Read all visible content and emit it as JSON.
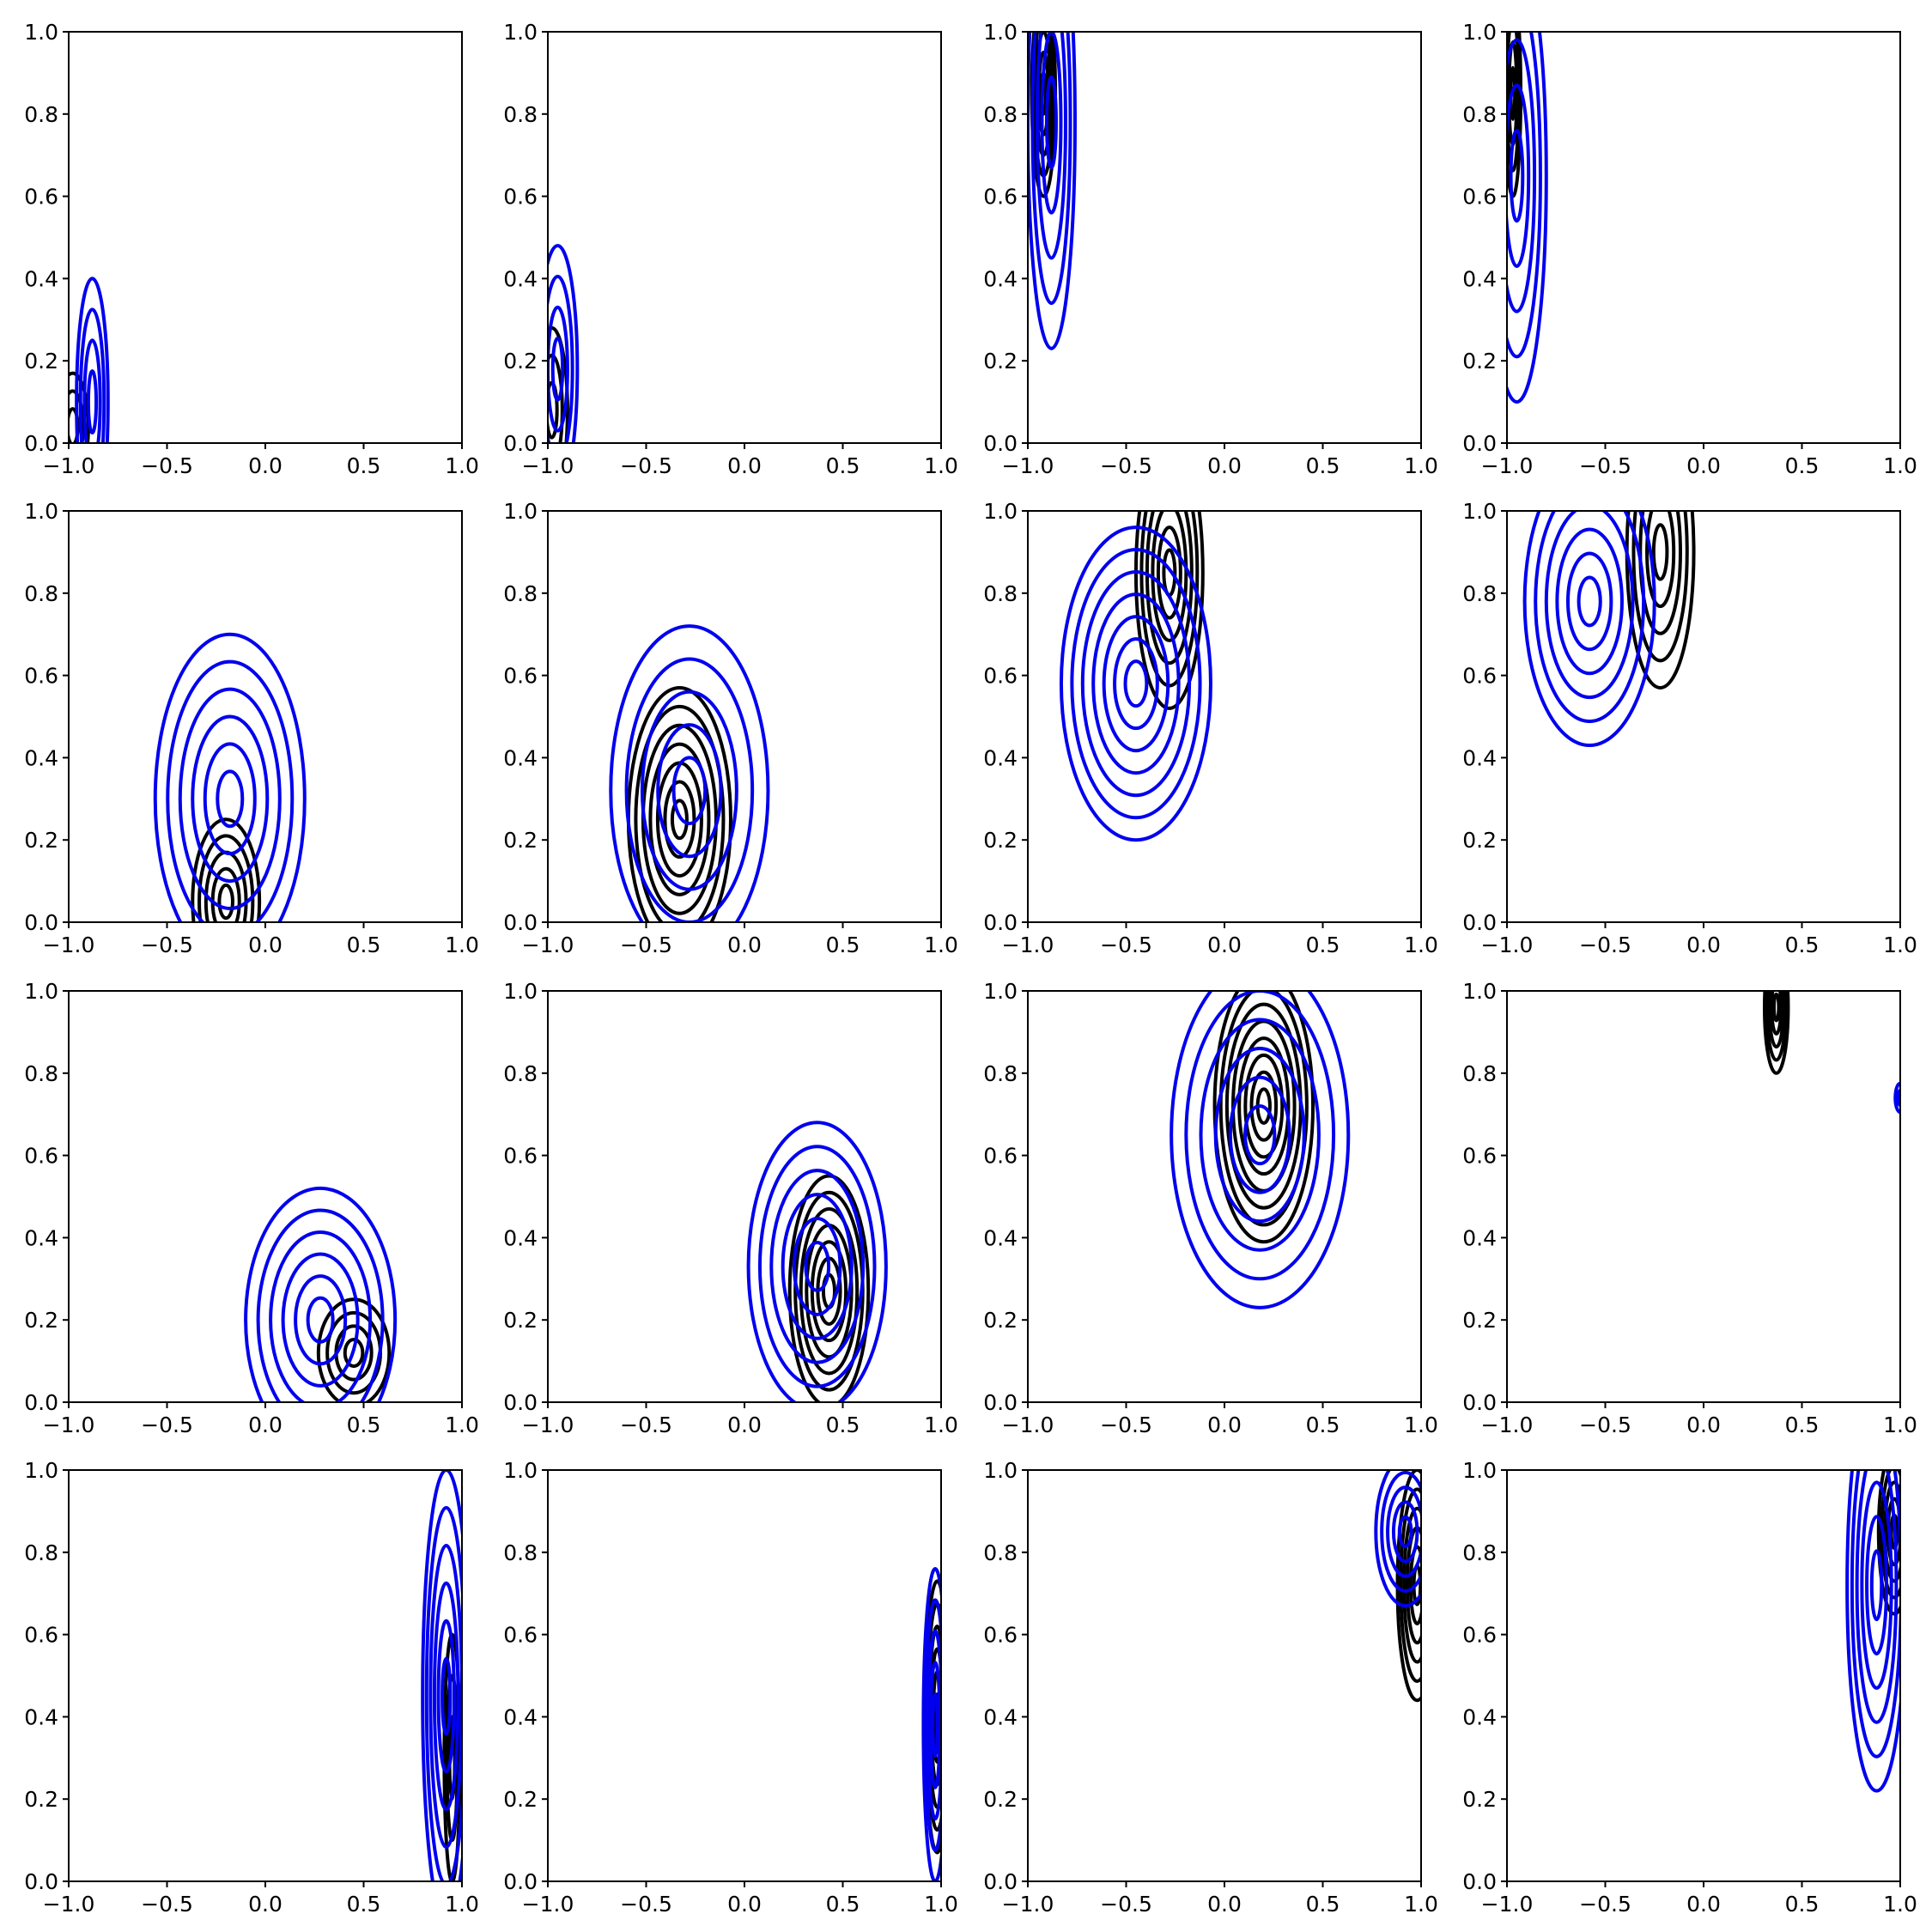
{
  "colors": {
    "black": "#000000",
    "blue": "#0000ee",
    "axes": "#000000",
    "background": "#ffffff"
  },
  "chart_data": {
    "type": "contour",
    "layout": {
      "rows": 4,
      "cols": 4
    },
    "xlim": [
      -1.0,
      1.0
    ],
    "ylim": [
      0.0,
      1.0
    ],
    "x_ticks": [
      "−1.0",
      "−0.5",
      "0.0",
      "0.5",
      "1.0"
    ],
    "y_ticks": [
      "0.0",
      "0.2",
      "0.4",
      "0.6",
      "0.8",
      "1.0"
    ],
    "grid": false,
    "series_colors": [
      "black",
      "blue"
    ],
    "panels": [
      {
        "black": {
          "cx": -0.98,
          "cy": 0.04,
          "sx": 0.08,
          "sy": 0.13,
          "levels": 3
        },
        "blue": {
          "cx": -0.88,
          "cy": 0.1,
          "sx": 0.08,
          "sy": 0.3,
          "levels": 4
        }
      },
      {
        "black": {
          "cx": -0.98,
          "cy": 0.08,
          "sx": 0.08,
          "sy": 0.2,
          "levels": 3
        },
        "blue": {
          "cx": -0.95,
          "cy": 0.18,
          "sx": 0.1,
          "sy": 0.3,
          "levels": 4
        }
      },
      {
        "black": {
          "cx": -0.92,
          "cy": 0.85,
          "sx": 0.06,
          "sy": 0.25,
          "levels": 5
        },
        "blue": {
          "cx": -0.88,
          "cy": 0.78,
          "sx": 0.12,
          "sy": 0.55,
          "levels": 5
        }
      },
      {
        "black": {
          "cx": -0.97,
          "cy": 0.85,
          "sx": 0.04,
          "sy": 0.25,
          "levels": 4
        },
        "blue": {
          "cx": -0.95,
          "cy": 0.65,
          "sx": 0.15,
          "sy": 0.55,
          "levels": 5
        }
      },
      {
        "black": {
          "cx": -0.2,
          "cy": 0.05,
          "sx": 0.17,
          "sy": 0.2,
          "levels": 5
        },
        "blue": {
          "cx": -0.18,
          "cy": 0.3,
          "sx": 0.38,
          "sy": 0.4,
          "levels": 6
        }
      },
      {
        "black": {
          "cx": -0.33,
          "cy": 0.25,
          "sx": 0.26,
          "sy": 0.32,
          "levels": 7
        },
        "blue": {
          "cx": -0.28,
          "cy": 0.32,
          "sx": 0.4,
          "sy": 0.4,
          "levels": 5
        }
      },
      {
        "black": {
          "cx": -0.28,
          "cy": 0.85,
          "sx": 0.17,
          "sy": 0.33,
          "levels": 6
        },
        "blue": {
          "cx": -0.45,
          "cy": 0.58,
          "sx": 0.38,
          "sy": 0.38,
          "levels": 7
        }
      },
      {
        "black": {
          "cx": -0.22,
          "cy": 0.9,
          "sx": 0.17,
          "sy": 0.33,
          "levels": 5
        },
        "blue": {
          "cx": -0.58,
          "cy": 0.78,
          "sx": 0.33,
          "sy": 0.35,
          "levels": 6
        }
      },
      {
        "black": {
          "cx": 0.45,
          "cy": 0.12,
          "sx": 0.18,
          "sy": 0.13,
          "levels": 4
        },
        "blue": {
          "cx": 0.28,
          "cy": 0.2,
          "sx": 0.38,
          "sy": 0.32,
          "levels": 6
        }
      },
      {
        "black": {
          "cx": 0.43,
          "cy": 0.27,
          "sx": 0.2,
          "sy": 0.28,
          "levels": 7
        },
        "blue": {
          "cx": 0.37,
          "cy": 0.33,
          "sx": 0.35,
          "sy": 0.35,
          "levels": 6
        }
      },
      {
        "black": {
          "cx": 0.2,
          "cy": 0.72,
          "sx": 0.25,
          "sy": 0.33,
          "levels": 8
        },
        "blue": {
          "cx": 0.18,
          "cy": 0.65,
          "sx": 0.45,
          "sy": 0.42,
          "levels": 6
        }
      },
      {
        "black": {
          "cx": 0.37,
          "cy": 0.96,
          "sx": 0.06,
          "sy": 0.16,
          "levels": 5
        },
        "blue": {
          "cx": 1.0,
          "cy": 0.74,
          "sx": 0.025,
          "sy": 0.035,
          "levels": 2
        }
      },
      {
        "black": {
          "cx": 0.95,
          "cy": 0.3,
          "sx": 0.04,
          "sy": 0.3,
          "levels": 3
        },
        "blue": {
          "cx": 0.92,
          "cy": 0.45,
          "sx": 0.12,
          "sy": 0.55,
          "levels": 6
        }
      },
      {
        "black": {
          "cx": 0.98,
          "cy": 0.4,
          "sx": 0.06,
          "sy": 0.33,
          "levels": 6
        },
        "blue": {
          "cx": 0.97,
          "cy": 0.38,
          "sx": 0.06,
          "sy": 0.38,
          "levels": 5
        }
      },
      {
        "black": {
          "cx": 0.98,
          "cy": 0.72,
          "sx": 0.1,
          "sy": 0.28,
          "levels": 6
        },
        "blue": {
          "cx": 0.92,
          "cy": 0.85,
          "sx": 0.15,
          "sy": 0.18,
          "levels": 5
        }
      },
      {
        "black": {
          "cx": 0.97,
          "cy": 0.85,
          "sx": 0.08,
          "sy": 0.2,
          "levels": 5
        },
        "blue": {
          "cx": 0.88,
          "cy": 0.72,
          "sx": 0.15,
          "sy": 0.5,
          "levels": 6
        }
      }
    ]
  }
}
